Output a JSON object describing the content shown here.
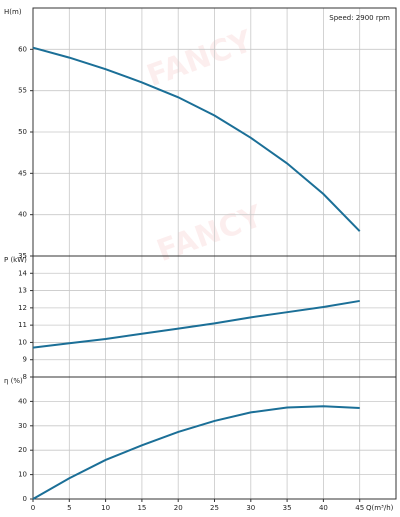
{
  "watermark": "FANCY",
  "chart_data": [
    {
      "type": "line",
      "ylabel": "H(m)",
      "annotation": "Speed: 2900 rpm",
      "x": [
        0,
        5,
        10,
        15,
        20,
        25,
        30,
        35,
        40,
        45
      ],
      "series": [
        {
          "color": "#1b6f97",
          "values": [
            60.2,
            59,
            57.6,
            56,
            54.2,
            52,
            49.3,
            46.2,
            42.5,
            38
          ]
        }
      ],
      "xlim": [
        0,
        50
      ],
      "xticks": [
        0,
        5,
        10,
        15,
        20,
        25,
        30,
        35,
        40,
        45
      ],
      "ylim": [
        35,
        65
      ],
      "yticks": [
        35,
        40,
        45,
        50,
        55,
        60
      ],
      "grid": true
    },
    {
      "type": "line",
      "ylabel": "P (kW)",
      "x": [
        0,
        5,
        10,
        15,
        20,
        25,
        30,
        35,
        40,
        45
      ],
      "series": [
        {
          "color": "#1b6f97",
          "values": [
            9.7,
            9.95,
            10.2,
            10.5,
            10.8,
            11.1,
            11.45,
            11.75,
            12.05,
            12.4
          ]
        }
      ],
      "xlim": [
        0,
        50
      ],
      "xticks": [
        0,
        5,
        10,
        15,
        20,
        25,
        30,
        35,
        40,
        45
      ],
      "ylim": [
        8,
        15
      ],
      "yticks": [
        8,
        9,
        10,
        11,
        12,
        13,
        14
      ],
      "grid": true
    },
    {
      "type": "line",
      "ylabel": "η (%)",
      "xlabel": "Q(m³/h)",
      "x": [
        0,
        5,
        10,
        15,
        20,
        25,
        30,
        35,
        40,
        45
      ],
      "series": [
        {
          "color": "#1b6f97",
          "values": [
            0,
            8.5,
            16,
            22,
            27.5,
            32,
            35.5,
            37.5,
            38,
            37.3
          ]
        }
      ],
      "xlim": [
        0,
        50
      ],
      "xticks": [
        0,
        5,
        10,
        15,
        20,
        25,
        30,
        35,
        40,
        45
      ],
      "ylim": [
        0,
        50
      ],
      "yticks": [
        0,
        10,
        20,
        30,
        40
      ],
      "grid": true
    }
  ]
}
